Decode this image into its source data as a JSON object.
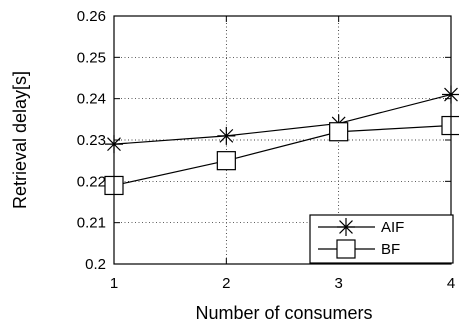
{
  "chart_data": {
    "type": "line",
    "title": "",
    "xlabel": "Number of consumers",
    "ylabel": "Retrieval delay[s]",
    "x": [
      1,
      2,
      3,
      4
    ],
    "xlim": [
      1,
      4
    ],
    "ylim": [
      0.2,
      0.26
    ],
    "xticks": [
      "1",
      "2",
      "3",
      "4"
    ],
    "yticks": [
      "0.2",
      "0.21",
      "0.22",
      "0.23",
      "0.24",
      "0.25",
      "0.26"
    ],
    "grid": true,
    "legend_position": "bottom-right",
    "series": [
      {
        "name": "AIF",
        "marker": "star",
        "values": [
          0.229,
          0.231,
          0.234,
          0.241
        ]
      },
      {
        "name": "BF",
        "marker": "square",
        "values": [
          0.219,
          0.225,
          0.232,
          0.2335
        ]
      }
    ]
  }
}
